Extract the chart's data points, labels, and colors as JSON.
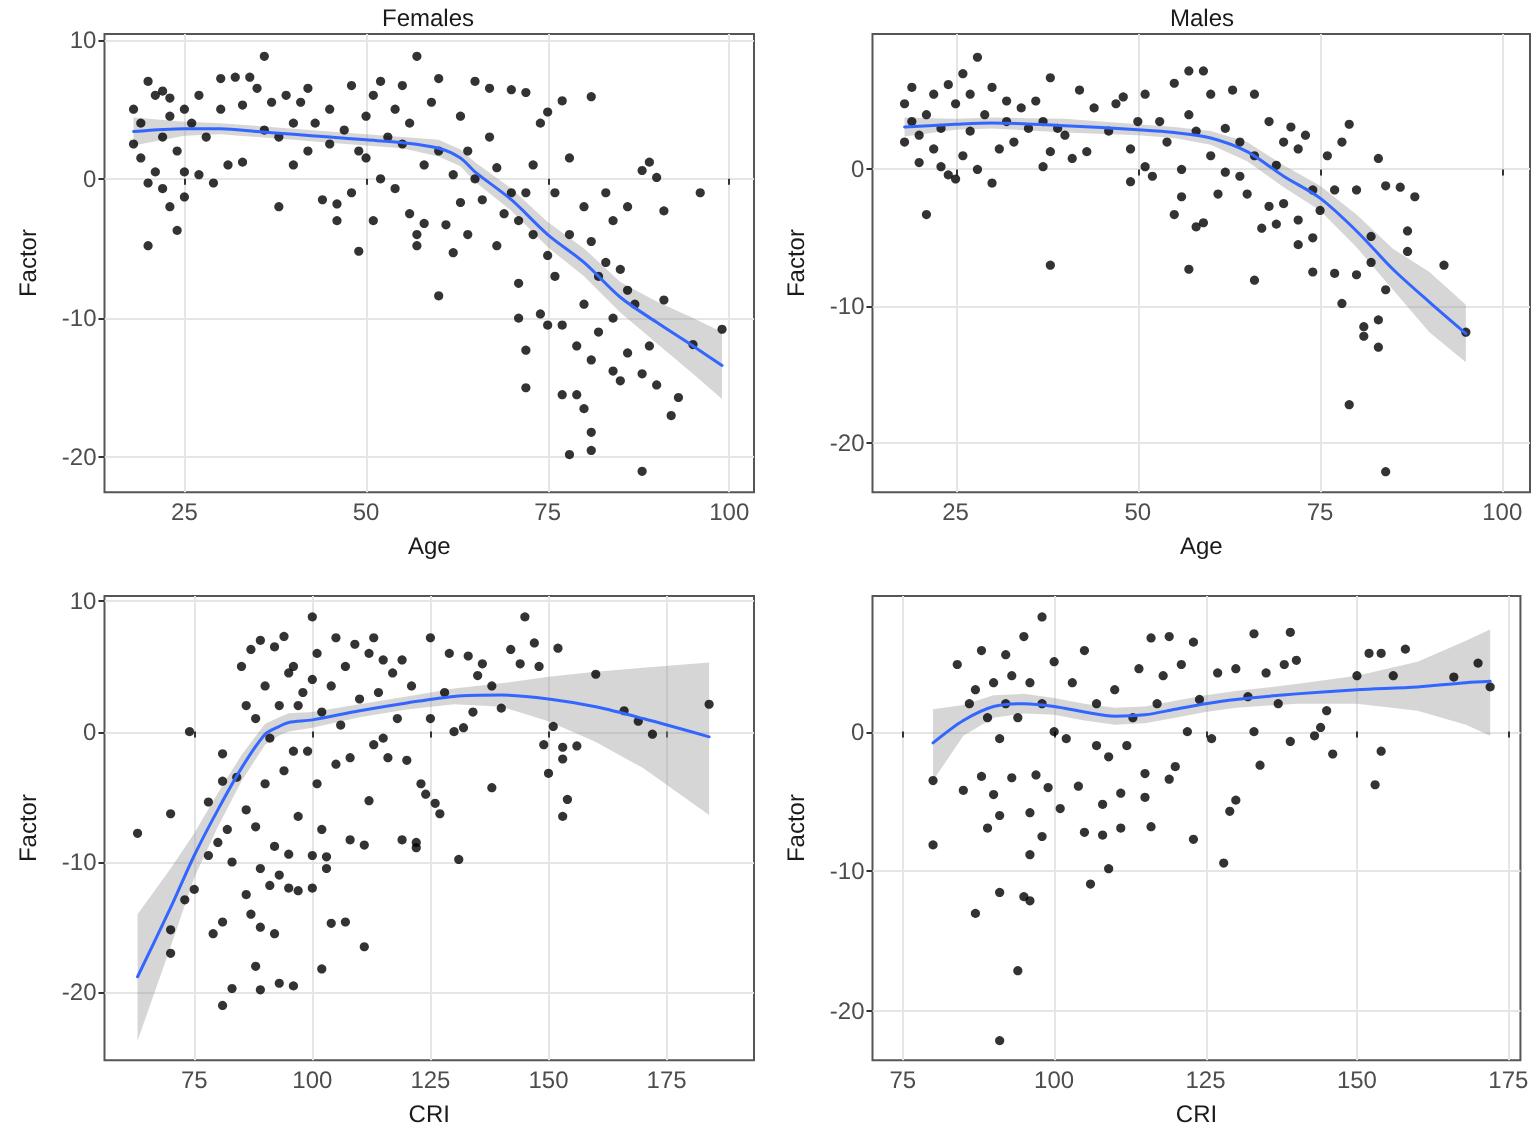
{
  "chart_data": [
    {
      "type": "scatter",
      "title": "Females",
      "xlabel": "Age",
      "ylabel": "Factor",
      "xlim": [
        14,
        103.4
      ],
      "ylim": [
        -22.5,
        10.4
      ],
      "xticks": [
        25,
        50,
        75,
        100
      ],
      "yticks": [
        -20,
        -10,
        0,
        10
      ],
      "grid": true,
      "series": [
        {
          "type": "scatter",
          "marker": "circle",
          "color": "#000000",
          "x": [
            18,
            18,
            19,
            19,
            20,
            20,
            20,
            21,
            21,
            22,
            22,
            22,
            23,
            23,
            23,
            24,
            24,
            25,
            25,
            25,
            26,
            27,
            27,
            28,
            29,
            30,
            30,
            31,
            32,
            33,
            33,
            34,
            35,
            36,
            36,
            37,
            38,
            38,
            39,
            40,
            40,
            41,
            42,
            42,
            43,
            44,
            45,
            45,
            46,
            46,
            47,
            48,
            48,
            49,
            49,
            50,
            50,
            51,
            51,
            52,
            52,
            53,
            54,
            54,
            55,
            55,
            56,
            56,
            57,
            57,
            57,
            58,
            58,
            59,
            60,
            60,
            60,
            61,
            62,
            62,
            63,
            63,
            64,
            64,
            65,
            65,
            66,
            67,
            67,
            68,
            68,
            69,
            70,
            70,
            71,
            71,
            71,
            72,
            72,
            72,
            72,
            73,
            73,
            74,
            74,
            75,
            75,
            75,
            76,
            76,
            77,
            77,
            77,
            78,
            78,
            78,
            79,
            79,
            80,
            80,
            80,
            81,
            81,
            81,
            81,
            81,
            82,
            82,
            83,
            83,
            84,
            84,
            84,
            85,
            85,
            86,
            86,
            86,
            87,
            88,
            88,
            88,
            89,
            89,
            90,
            90,
            91,
            91,
            92,
            93,
            95,
            96,
            99
          ],
          "values": [
            5,
            2.5,
            4,
            1.5,
            -0.3,
            7,
            -4.8,
            6,
            0.5,
            6.3,
            -0.7,
            3,
            5.8,
            -2,
            4.5,
            -3.7,
            2,
            5,
            0.5,
            -1.3,
            4,
            6,
            0.3,
            3,
            -0.3,
            7.2,
            5,
            1,
            7.3,
            5.3,
            1.2,
            7.3,
            6.5,
            8.8,
            3.5,
            5.5,
            -2,
            3,
            6,
            4,
            1,
            5.5,
            6.5,
            2,
            4,
            -1.5,
            5,
            2.5,
            -3,
            -1.8,
            3.5,
            6.7,
            -1,
            -5.2,
            2,
            4.5,
            1.5,
            -3,
            6,
            7,
            0,
            3,
            5,
            -0.7,
            6.7,
            2.5,
            -2.5,
            4,
            8.8,
            -4.8,
            -4,
            1,
            -3.2,
            5.5,
            -8.4,
            7.2,
            2,
            -3.3,
            0.3,
            -5.3,
            4.5,
            -1.7,
            2,
            -4,
            7,
            0,
            -1.5,
            6.5,
            3,
            -4.8,
            0.8,
            -2.5,
            6.4,
            -1,
            -7.5,
            -10,
            -3,
            6.2,
            -12.3,
            -15,
            -1,
            -4,
            1,
            4,
            -9.7,
            4.8,
            -10.5,
            -5.5,
            -7,
            -1,
            5.6,
            -15.5,
            -10.5,
            -19.8,
            -4,
            1.5,
            -12,
            -15.5,
            -16.5,
            -9,
            -2,
            -19.5,
            -18.2,
            5.9,
            -13,
            -4.5,
            -11,
            -7,
            -6,
            -1,
            -13.8,
            -10,
            -3,
            -14.5,
            -6.5,
            -12.5,
            -2,
            -8,
            -9,
            -21,
            -14,
            0.6,
            1.2,
            -12,
            -14.8,
            0.1,
            -8.7,
            -2.3,
            -17,
            -15.7,
            -11.9,
            -1,
            -10.8
          ]
        },
        {
          "type": "line",
          "marker": "none",
          "line_style": "solid",
          "color": "#3366ff",
          "x": [
            18,
            25,
            30,
            35,
            40,
            45,
            50,
            55,
            60,
            63,
            65,
            70,
            75,
            80,
            85,
            90,
            95,
            99
          ],
          "values": [
            3.4,
            3.6,
            3.6,
            3.4,
            3.2,
            3.0,
            2.8,
            2.6,
            2.2,
            1.5,
            0.5,
            -1.5,
            -4,
            -6,
            -8.5,
            -10.3,
            -12,
            -13.4
          ],
          "lower": [
            2.4,
            3.1,
            3.2,
            3.0,
            2.8,
            2.6,
            2.4,
            2.2,
            1.6,
            0.9,
            -0.2,
            -2.3,
            -4.9,
            -7,
            -9.6,
            -11.8,
            -14,
            -15.8
          ],
          "upper": [
            4.4,
            4.1,
            4.0,
            3.8,
            3.6,
            3.4,
            3.2,
            3.0,
            2.8,
            2.1,
            1.2,
            -0.7,
            -3.1,
            -5,
            -7.4,
            -8.8,
            -10,
            -11
          ]
        }
      ]
    },
    {
      "type": "scatter",
      "title": "Males",
      "xlabel": "Age",
      "ylabel": "Factor",
      "xlim": [
        13.6,
        103.8
      ],
      "ylim": [
        -23.6,
        9.9
      ],
      "xticks": [
        25,
        50,
        75,
        100
      ],
      "yticks": [
        -20,
        -10,
        0
      ],
      "grid": true,
      "series": [
        {
          "type": "scatter",
          "marker": "circle",
          "color": "#000000",
          "x": [
            18,
            18,
            19,
            19,
            20,
            20,
            21,
            21,
            22,
            22,
            23,
            23,
            24,
            24,
            25,
            25,
            26,
            26,
            27,
            27,
            28,
            28,
            29,
            30,
            30,
            31,
            32,
            32,
            33,
            34,
            35,
            36,
            37,
            37,
            38,
            38,
            38,
            39,
            40,
            41,
            42,
            43,
            44,
            46,
            47,
            48,
            49,
            49,
            50,
            51,
            51,
            52,
            53,
            54,
            55,
            55,
            56,
            56,
            57,
            57,
            57,
            58,
            58,
            59,
            59,
            60,
            60,
            61,
            62,
            62,
            63,
            64,
            64,
            65,
            66,
            66,
            66,
            67,
            68,
            68,
            69,
            69,
            70,
            70,
            71,
            72,
            72,
            72,
            73,
            74,
            74,
            74,
            75,
            76,
            77,
            77,
            78,
            78,
            79,
            79,
            80,
            80,
            81,
            81,
            82,
            82,
            83,
            83,
            83,
            84,
            84,
            84,
            86,
            87,
            87,
            88,
            92,
            95
          ],
          "values": [
            4.8,
            2,
            3.5,
            6,
            0.5,
            2.5,
            -3.3,
            4,
            5.5,
            1.5,
            3,
            0.2,
            6.2,
            -0.4,
            -0.7,
            4.8,
            7,
            1,
            5.5,
            2.8,
            8.2,
            0,
            4,
            -1,
            6,
            1.5,
            3.5,
            5,
            2,
            4.5,
            3,
            5,
            3.5,
            0.2,
            6.7,
            -7,
            1.3,
            3,
            2.5,
            0.8,
            5.8,
            1.3,
            4.5,
            2.8,
            4.8,
            5.3,
            -0.9,
            1.5,
            3.5,
            0.2,
            5.5,
            -0.5,
            3.5,
            2,
            6.3,
            -3.3,
            0,
            -2,
            7.2,
            -7.3,
            4,
            -4.2,
            2.8,
            7.2,
            -3.9,
            1,
            5.5,
            -1.8,
            -0.2,
            3,
            5.8,
            -0.5,
            2,
            -1.8,
            5.5,
            -8.1,
            1,
            -4.3,
            3.5,
            -2.7,
            0.3,
            -4,
            -2.5,
            2,
            3.1,
            -5.5,
            -3.7,
            1.5,
            2.5,
            -7.5,
            -5,
            -1.5,
            -3,
            1,
            -7.6,
            -1.5,
            -9.8,
            2,
            -17.2,
            3.3,
            -7.7,
            -1.5,
            -11.5,
            -12.2,
            -4.9,
            -6.8,
            -13,
            -11,
            0.8,
            -22.1,
            -8.8,
            -1.2,
            -1.3,
            -4.5,
            -6,
            -2,
            -7,
            -11.9
          ]
        },
        {
          "type": "line",
          "marker": "none",
          "line_style": "solid",
          "color": "#3366ff",
          "x": [
            18,
            25,
            30,
            40,
            50,
            55,
            60,
            65,
            70,
            75,
            80,
            85,
            90,
            95
          ],
          "values": [
            3.1,
            3.3,
            3.4,
            3.2,
            2.9,
            2.7,
            2.3,
            1.3,
            -0.5,
            -2.1,
            -4.5,
            -7.3,
            -9.7,
            -12
          ],
          "lower": [
            2.4,
            2.9,
            3.0,
            2.7,
            2.5,
            2.3,
            1.8,
            0.6,
            -1.3,
            -3.0,
            -5.7,
            -8.8,
            -11.9,
            -14.1
          ],
          "upper": [
            3.8,
            3.7,
            3.8,
            3.7,
            3.3,
            3.1,
            2.8,
            2.0,
            0.3,
            -1.2,
            -3.3,
            -5.8,
            -7.5,
            -9.9
          ]
        }
      ]
    },
    {
      "type": "scatter",
      "xlabel": "CRI",
      "ylabel": "Factor",
      "xlim": [
        56,
        193.5
      ],
      "ylim": [
        -25.2,
        10.4
      ],
      "xticks": [
        75,
        100,
        125,
        150,
        175
      ],
      "yticks": [
        -20,
        -10,
        0,
        10
      ],
      "grid": true,
      "series": [
        {
          "type": "scatter",
          "marker": "circle",
          "color": "#000000",
          "x": [
            63,
            70,
            70,
            70,
            73,
            74,
            75,
            78,
            78,
            79,
            80,
            81,
            81,
            81,
            81,
            82,
            83,
            83,
            84,
            85,
            86,
            86,
            86,
            87,
            87,
            88,
            88,
            88,
            89,
            89,
            89,
            89,
            90,
            90,
            91,
            91,
            92,
            92,
            92,
            93,
            93,
            93,
            94,
            94,
            95,
            95,
            95,
            96,
            96,
            96,
            97,
            97,
            97,
            98,
            99,
            100,
            100,
            100,
            100,
            101,
            101,
            102,
            102,
            102,
            103,
            103,
            104,
            104,
            105,
            105,
            106,
            107,
            107,
            108,
            108,
            109,
            110,
            111,
            111,
            112,
            112,
            113,
            113,
            114,
            115,
            115,
            116,
            117,
            118,
            119,
            119,
            120,
            121,
            122,
            122,
            123,
            124,
            125,
            125,
            126,
            127,
            128,
            129,
            130,
            131,
            132,
            133,
            134,
            135,
            136,
            138,
            138,
            140,
            142,
            144,
            145,
            147,
            148,
            149,
            150,
            151,
            152,
            153,
            153,
            153,
            154,
            156,
            160,
            166,
            169,
            172,
            184
          ],
          "values": [
            -7.8,
            -6.3,
            -15.2,
            -17,
            -12.9,
            0,
            -12.1,
            -5.4,
            -9.5,
            -15.5,
            -8.5,
            -21,
            -14.6,
            -1.7,
            -3.8,
            -7.5,
            -19.7,
            -10,
            -3.5,
            5,
            -12.5,
            2,
            -6,
            -14,
            6.3,
            -18,
            -7.3,
            1,
            -19.8,
            -10.5,
            -15,
            7,
            -4,
            3.5,
            -11.8,
            -0.5,
            -15.5,
            -8.8,
            6.5,
            -19.3,
            -11,
            2,
            7.3,
            -3,
            -12,
            -9.4,
            4.5,
            -19.5,
            -1.5,
            5,
            -12.2,
            -6.5,
            2,
            3,
            -1.5,
            8.8,
            -9.5,
            -12,
            4,
            6,
            -4,
            -18.2,
            -7.5,
            1.5,
            -10.5,
            -9.6,
            -14.7,
            3.5,
            7.2,
            -2.5,
            0.5,
            -14.6,
            5,
            -8.3,
            -2,
            6.7,
            2.5,
            -16.5,
            -8.7,
            -5.3,
            6,
            7.2,
            -1,
            3,
            5.5,
            -0.5,
            -2,
            4.5,
            1,
            -8.3,
            5.5,
            -2.2,
            3.5,
            -8.9,
            -8.5,
            -4,
            -4.8,
            7.2,
            1,
            -5.5,
            -6.3,
            3,
            6,
            0,
            -9.8,
            0.3,
            5.8,
            1.5,
            4.3,
            5.2,
            -4.3,
            3.5,
            1.8,
            6.3,
            5.2,
            8.8,
            6.8,
            5,
            -1,
            -3.2,
            0.4,
            6.4,
            -1.2,
            -2.1,
            -6.5,
            -5.2,
            -1.1,
            4.4,
            1.6,
            0.8,
            -0.2,
            2.1
          ]
        },
        {
          "type": "line",
          "marker": "none",
          "line_style": "solid",
          "color": "#3366ff",
          "x": [
            63,
            70,
            75,
            80,
            85,
            90,
            93,
            95,
            100,
            110,
            120,
            130,
            140,
            150,
            160,
            170,
            184
          ],
          "values": [
            -18.8,
            -13.5,
            -9.5,
            -6,
            -2.8,
            -0.2,
            0.4,
            0.7,
            0.9,
            1.6,
            2.2,
            2.7,
            2.8,
            2.5,
            1.9,
            1.0,
            -0.4
          ],
          "lower": [
            -23.7,
            -16.5,
            -11.2,
            -7.3,
            -3.8,
            -1.0,
            -0.3,
            0,
            0.3,
            1.1,
            1.7,
            2.1,
            1.9,
            0.8,
            -0.8,
            -2.8,
            -6.4
          ],
          "upper": [
            -14,
            -10.5,
            -7.8,
            -4.7,
            -1.8,
            0.6,
            1.1,
            1.4,
            1.5,
            2.1,
            2.7,
            3.3,
            3.7,
            4.2,
            4.6,
            4.9,
            5.3
          ]
        }
      ]
    },
    {
      "type": "scatter",
      "xlabel": "CRI",
      "ylabel": "Factor",
      "xlim": [
        70,
        177
      ],
      "ylim": [
        -23.5,
        9.7
      ],
      "xticks": [
        75,
        100,
        125,
        150,
        175
      ],
      "yticks": [
        -20,
        -10,
        0
      ],
      "grid": true,
      "series": [
        {
          "type": "scatter",
          "marker": "circle",
          "color": "#000000",
          "x": [
            80,
            80,
            84,
            85,
            86,
            87,
            87,
            88,
            88,
            89,
            89,
            90,
            90,
            91,
            91,
            91,
            91,
            92,
            92,
            93,
            93,
            94,
            94,
            95,
            95,
            96,
            96,
            96,
            96,
            97,
            98,
            98,
            98,
            99,
            100,
            100,
            101,
            102,
            103,
            104,
            105,
            105,
            106,
            107,
            107,
            108,
            108,
            109,
            109,
            110,
            111,
            111,
            112,
            113,
            114,
            115,
            115,
            116,
            116,
            117,
            118,
            119,
            119,
            120,
            121,
            122,
            123,
            123,
            124,
            126,
            127,
            128,
            129,
            130,
            130,
            132,
            133,
            133,
            134,
            135,
            137,
            138,
            139,
            139,
            140,
            143,
            144,
            145,
            146,
            150,
            152,
            153,
            154,
            154,
            156,
            158,
            166,
            170,
            172
          ],
          "values": [
            -3.5,
            -8.1,
            4.8,
            -4.2,
            2,
            -13,
            3,
            -3.2,
            5.8,
            -6.9,
            1,
            3.5,
            -4.5,
            -22.1,
            -11.5,
            -6,
            -0.5,
            5.5,
            2,
            -3.3,
            4,
            -17.1,
            1,
            -11.8,
            6.8,
            -12.1,
            -8.8,
            -5.8,
            3.5,
            -3.1,
            -7.5,
            8.2,
            2,
            -4,
            0,
            5,
            -5.5,
            -0.5,
            3.5,
            -3.9,
            -7.2,
            5.8,
            -10.9,
            2,
            -1,
            -5.2,
            -7.4,
            -9.8,
            -1.8,
            3,
            -6.9,
            -4.4,
            -1,
            1,
            4.5,
            -4.7,
            -3,
            -6.8,
            6.7,
            2,
            4,
            -3.4,
            6.8,
            -2.5,
            4.8,
            0,
            -7.7,
            6.4,
            2.3,
            -0.5,
            4.2,
            -9.4,
            -5.7,
            -4.9,
            4.5,
            2.5,
            0,
            7,
            -2.4,
            4.2,
            2,
            4.8,
            -0.7,
            7.1,
            5.1,
            -0.3,
            0.3,
            1.5,
            -1.6,
            4,
            5.6,
            -3.8,
            -1.4,
            5.6,
            4,
            5.9,
            3.9,
            4.9,
            3.2
          ]
        },
        {
          "type": "line",
          "marker": "none",
          "line_style": "solid",
          "color": "#3366ff",
          "x": [
            80,
            85,
            90,
            95,
            100,
            105,
            110,
            115,
            120,
            125,
            130,
            140,
            150,
            160,
            168,
            172
          ],
          "values": [
            -0.8,
            0.8,
            1.8,
            2,
            1.8,
            1.4,
            1.1,
            1.2,
            1.6,
            2,
            2.3,
            2.7,
            3.0,
            3.2,
            3.5,
            3.6
          ],
          "lower": [
            -3.5,
            -0.3,
            1,
            1.3,
            1.2,
            0.8,
            0.5,
            0.6,
            1,
            1.4,
            1.7,
            2,
            2,
            1.5,
            0.5,
            -0.3
          ],
          "upper": [
            1.6,
            1.9,
            2.6,
            2.7,
            2.4,
            2.0,
            1.7,
            1.8,
            2.2,
            2.6,
            2.9,
            3.4,
            4,
            5,
            6.5,
            7.3
          ]
        }
      ]
    }
  ]
}
